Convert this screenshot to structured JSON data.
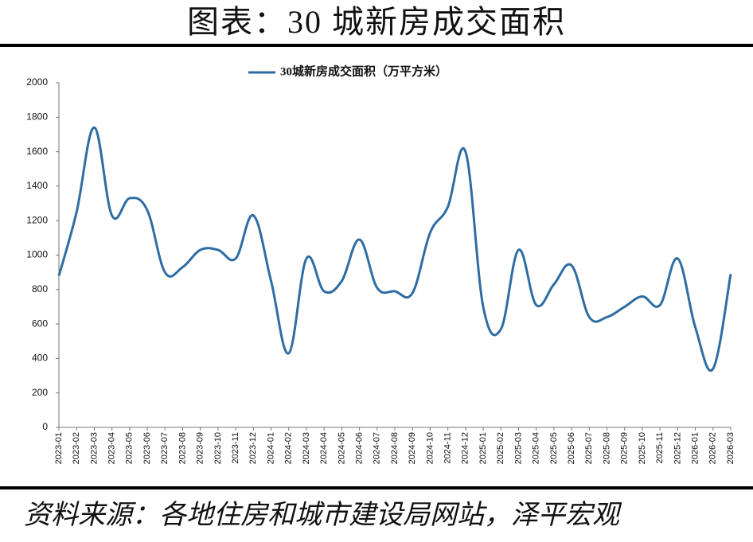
{
  "header": {
    "title": "图表：30 城新房成交面积"
  },
  "chart_data": {
    "type": "line",
    "categories": [
      "2023-01",
      "2023-02",
      "2023-03",
      "2023-04",
      "2023-05",
      "2023-06",
      "2023-07",
      "2023-08",
      "2023-09",
      "2023-10",
      "2023-11",
      "2023-12",
      "2024-01",
      "2024-02",
      "2024-03",
      "2024-04",
      "2024-05",
      "2024-06",
      "2024-07",
      "2024-08",
      "2024-09",
      "2024-10",
      "2024-11",
      "2024-12",
      "2025-01",
      "2025-02",
      "2025-03",
      "2025-04",
      "2025-05",
      "2025-06",
      "2025-07",
      "2025-08",
      "2025-09",
      "2025-10",
      "2025-11",
      "2025-12",
      "2026-01",
      "2026-02",
      "2026-03"
    ],
    "series": [
      {
        "name": "30城新房成交面积（万平方米）",
        "color": "#2e6da4",
        "values": [
          880,
          1250,
          1740,
          1230,
          1330,
          1260,
          900,
          930,
          1030,
          1030,
          980,
          1230,
          850,
          430,
          980,
          790,
          850,
          1090,
          810,
          790,
          780,
          1130,
          1280,
          1600,
          700,
          570,
          1030,
          710,
          830,
          940,
          640,
          640,
          700,
          760,
          710,
          980,
          580,
          340,
          890
        ]
      }
    ],
    "ylim": [
      0,
      2000
    ],
    "yticks": [
      0,
      200,
      400,
      600,
      800,
      1000,
      1200,
      1400,
      1600,
      1800,
      2000
    ],
    "grid": false,
    "legend": "top"
  },
  "footer": {
    "source": "资料来源：各地住房和城市建设局网站，泽平宏观"
  }
}
